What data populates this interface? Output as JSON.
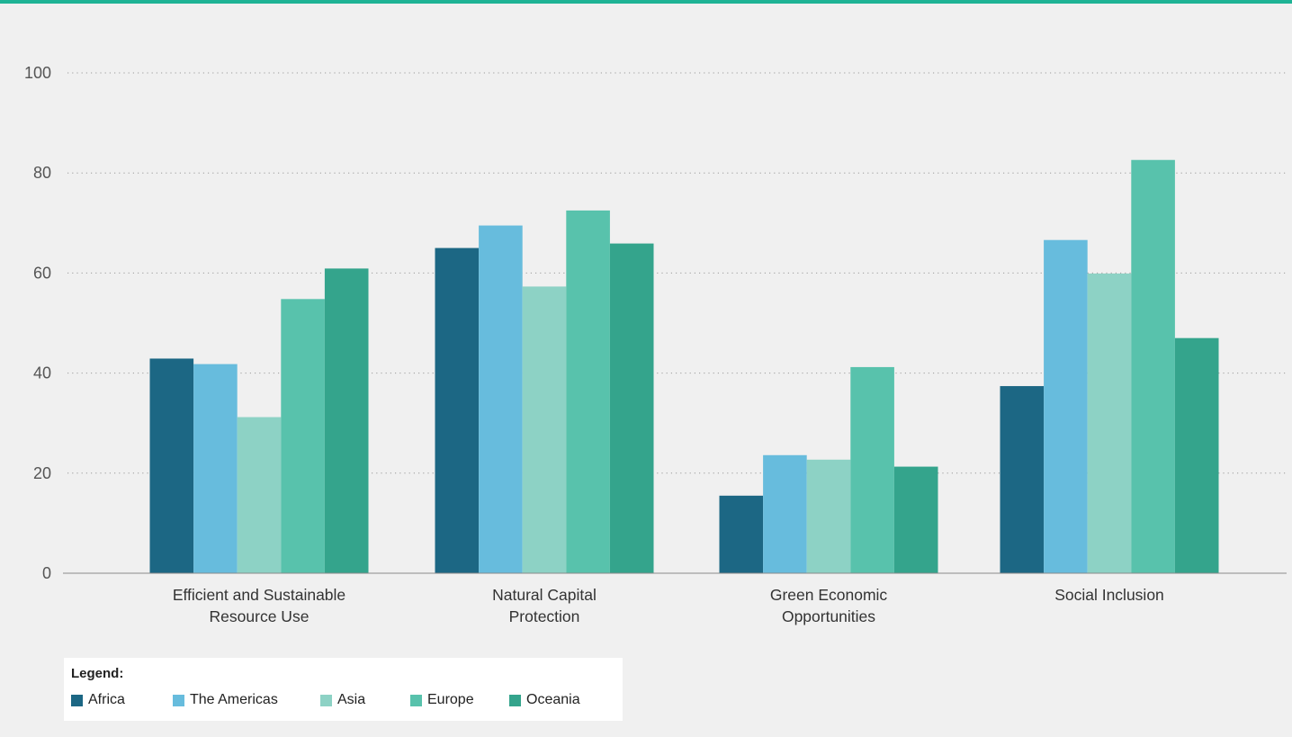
{
  "colors": {
    "accent_bar": "#1eb395",
    "background": "#f0f0f0"
  },
  "chart_data": {
    "type": "bar",
    "title": "",
    "xlabel": "",
    "ylabel": "",
    "ylim": [
      0,
      100
    ],
    "yticks": [
      "0",
      "20",
      "40",
      "60",
      "80",
      "100"
    ],
    "grid": true,
    "legend_position": "bottom-left",
    "categories": [
      [
        "Efficient and Sustainable",
        "Resource Use"
      ],
      [
        "Natural Capital",
        "Protection"
      ],
      [
        "Green Economic",
        "Opportunities"
      ],
      [
        "Social Inclusion"
      ]
    ],
    "series": [
      {
        "name": "Africa",
        "color": "#1c6784",
        "values": [
          42.9,
          65.0,
          15.5,
          37.4
        ]
      },
      {
        "name": "The Americas",
        "color": "#67bcdd",
        "values": [
          41.8,
          69.5,
          23.6,
          66.6
        ]
      },
      {
        "name": "Asia",
        "color": "#8dd2c5",
        "values": [
          31.2,
          57.3,
          22.7,
          59.9
        ]
      },
      {
        "name": "Europe",
        "color": "#58c2ac",
        "values": [
          54.8,
          72.5,
          41.2,
          82.6
        ]
      },
      {
        "name": "Oceania",
        "color": "#34a48c",
        "values": [
          60.9,
          65.9,
          21.3,
          47.0
        ]
      }
    ]
  },
  "legend": {
    "title": "Legend:",
    "items": [
      "Africa",
      "The Americas",
      "Asia",
      "Europe",
      "Oceania"
    ]
  }
}
